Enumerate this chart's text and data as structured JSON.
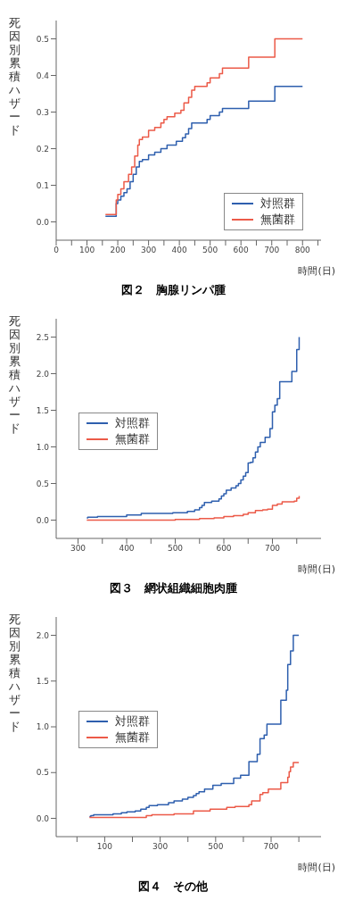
{
  "chart_data": [
    {
      "type": "step",
      "title": "図２　胸腺リンパ腫",
      "xlabel": "時間(日)",
      "ylabel": "死因別累積ハザード",
      "legend": "bottom right",
      "marker": "none",
      "line_style": "solid",
      "grid": false,
      "xlim": [
        0,
        860
      ],
      "xticks": [
        0,
        {
          "value": 50,
          "label": null
        },
        100,
        {
          "value": 150,
          "label": null
        },
        200,
        {
          "value": 250,
          "label": null
        },
        300,
        {
          "value": 350,
          "label": null
        },
        400,
        {
          "value": 450,
          "label": null
        },
        500,
        {
          "value": 550,
          "label": null
        },
        600,
        {
          "value": 650,
          "label": null
        },
        700,
        {
          "value": 750,
          "label": null
        },
        800,
        {
          "value": 850,
          "label": null
        }
      ],
      "ylim": [
        -0.05,
        0.55
      ],
      "yticks": [
        {
          "value": 0,
          "label": "0.0"
        },
        0.1,
        0.2,
        0.3,
        0.4,
        0.5
      ],
      "series": [
        {
          "name": "対照群",
          "color": "#2e5fae",
          "x": [
            160,
            190,
            195,
            200,
            210,
            220,
            230,
            240,
            250,
            260,
            270,
            280,
            300,
            320,
            340,
            360,
            390,
            410,
            420,
            430,
            440,
            490,
            500,
            530,
            540,
            625,
            710,
            800
          ],
          "values": [
            0.015,
            0.015,
            0.05,
            0.06,
            0.07,
            0.08,
            0.09,
            0.11,
            0.13,
            0.15,
            0.165,
            0.17,
            0.183,
            0.19,
            0.2,
            0.21,
            0.22,
            0.23,
            0.24,
            0.255,
            0.27,
            0.28,
            0.29,
            0.3,
            0.31,
            0.33,
            0.37,
            0.37
          ]
        },
        {
          "name": "無菌群",
          "color": "#ec5a48",
          "x": [
            160,
            190,
            195,
            200,
            210,
            220,
            235,
            245,
            255,
            265,
            270,
            280,
            300,
            320,
            340,
            350,
            360,
            385,
            405,
            415,
            430,
            440,
            450,
            490,
            500,
            530,
            540,
            625,
            710,
            800
          ],
          "values": [
            0.02,
            0.02,
            0.06,
            0.075,
            0.09,
            0.11,
            0.13,
            0.15,
            0.18,
            0.21,
            0.225,
            0.232,
            0.25,
            0.258,
            0.27,
            0.28,
            0.287,
            0.297,
            0.305,
            0.325,
            0.34,
            0.36,
            0.37,
            0.38,
            0.393,
            0.405,
            0.42,
            0.45,
            0.5,
            0.5
          ]
        }
      ]
    },
    {
      "type": "step",
      "title": "図３　網状組織細胞肉腫",
      "xlabel": "時間(日)",
      "ylabel": "死因別累積ハザード",
      "legend": "left",
      "marker": "none",
      "line_style": "solid",
      "grid": false,
      "xlim": [
        255,
        800
      ],
      "xticks": [
        300,
        {
          "value": 350,
          "label": null
        },
        400,
        {
          "value": 450,
          "label": null
        },
        500,
        {
          "value": 550,
          "label": null
        },
        600,
        {
          "value": 650,
          "label": null
        },
        700,
        {
          "value": 750,
          "label": null
        }
      ],
      "ylim": [
        -0.25,
        2.75
      ],
      "yticks": [
        {
          "value": 0,
          "label": "0.0"
        },
        0.5,
        {
          "value": 1,
          "label": "1.0"
        },
        1.5,
        {
          "value": 2,
          "label": "2.0"
        },
        2.5
      ],
      "series": [
        {
          "name": "対照群",
          "color": "#2e5fae",
          "x": [
            318,
            320,
            340,
            400,
            430,
            495,
            525,
            540,
            550,
            555,
            560,
            575,
            590,
            595,
            600,
            605,
            615,
            625,
            630,
            635,
            640,
            645,
            650,
            655,
            660,
            665,
            670,
            675,
            685,
            695,
            700,
            705,
            710,
            715,
            740,
            750,
            755
          ],
          "values": [
            0.03,
            0.04,
            0.05,
            0.07,
            0.09,
            0.1,
            0.12,
            0.14,
            0.17,
            0.2,
            0.24,
            0.26,
            0.29,
            0.33,
            0.36,
            0.41,
            0.44,
            0.47,
            0.5,
            0.55,
            0.6,
            0.65,
            0.78,
            0.79,
            0.85,
            0.93,
            1.0,
            1.06,
            1.13,
            1.25,
            1.48,
            1.57,
            1.66,
            1.89,
            2.03,
            2.33,
            2.5
          ]
        },
        {
          "name": "無菌群",
          "color": "#ec5a48",
          "x": [
            318,
            400,
            500,
            550,
            580,
            600,
            620,
            640,
            650,
            665,
            680,
            690,
            700,
            710,
            720,
            745,
            750,
            755
          ],
          "values": [
            0.0,
            0.0,
            0.01,
            0.02,
            0.03,
            0.05,
            0.06,
            0.08,
            0.1,
            0.13,
            0.14,
            0.15,
            0.2,
            0.22,
            0.25,
            0.26,
            0.3,
            0.33
          ]
        }
      ]
    },
    {
      "type": "step",
      "title": "図４　その他",
      "xlabel": "時間(日)",
      "ylabel": "死因別累積ハザード",
      "legend": "left",
      "marker": "none",
      "line_style": "solid",
      "grid": false,
      "xlim": [
        -75,
        880
      ],
      "xticks": [
        {
          "value": 0,
          "label": null
        },
        100,
        {
          "value": 200,
          "label": null
        },
        300,
        {
          "value": 400,
          "label": null
        },
        500,
        {
          "value": 600,
          "label": null
        },
        700,
        {
          "value": 800,
          "label": null
        }
      ],
      "ylim": [
        -0.2,
        2.2
      ],
      "yticks": [
        {
          "value": 0,
          "label": "0.0"
        },
        0.5,
        {
          "value": 1,
          "label": "1.0"
        },
        1.5,
        {
          "value": 2,
          "label": "2.0"
        }
      ],
      "series": [
        {
          "name": "対照群",
          "color": "#2e5fae",
          "x": [
            45,
            50,
            60,
            130,
            160,
            180,
            210,
            230,
            250,
            260,
            290,
            330,
            350,
            380,
            400,
            420,
            430,
            440,
            460,
            490,
            520,
            565,
            590,
            620,
            650,
            660,
            675,
            685,
            735,
            755,
            760,
            770,
            780,
            800
          ],
          "values": [
            0.02,
            0.03,
            0.04,
            0.05,
            0.06,
            0.07,
            0.08,
            0.1,
            0.12,
            0.14,
            0.15,
            0.17,
            0.19,
            0.21,
            0.23,
            0.25,
            0.27,
            0.29,
            0.32,
            0.36,
            0.38,
            0.44,
            0.47,
            0.62,
            0.7,
            0.87,
            0.91,
            1.03,
            1.29,
            1.4,
            1.68,
            1.83,
            2.0,
            2.0
          ]
        },
        {
          "name": "無菌群",
          "color": "#ec5a48",
          "x": [
            45,
            150,
            250,
            270,
            350,
            420,
            480,
            540,
            570,
            620,
            630,
            660,
            670,
            690,
            735,
            760,
            765,
            770,
            780,
            800
          ],
          "values": [
            0.01,
            0.01,
            0.03,
            0.04,
            0.05,
            0.08,
            0.1,
            0.12,
            0.13,
            0.15,
            0.19,
            0.26,
            0.28,
            0.32,
            0.39,
            0.45,
            0.51,
            0.56,
            0.61,
            0.61
          ]
        }
      ]
    }
  ]
}
